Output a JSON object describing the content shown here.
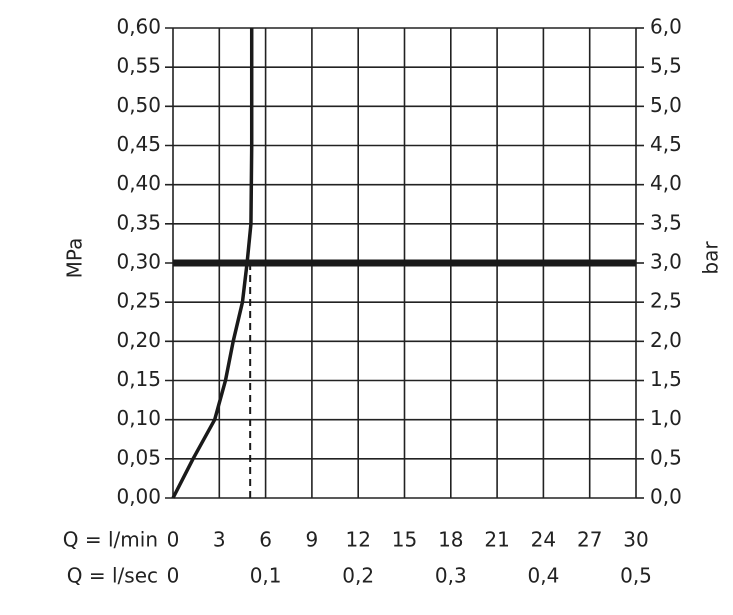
{
  "chart_data": {
    "type": "line",
    "ylabel": "MPa",
    "y2label": "bar",
    "xlabel": "Q = l/min",
    "x2label": "Q = l/sec",
    "xlim": [
      0,
      30
    ],
    "xticks": [
      0,
      3,
      6,
      9,
      12,
      15,
      18,
      21,
      24,
      27,
      30
    ],
    "x2lim": [
      0,
      0.5
    ],
    "x2ticks": [
      0,
      {
        "value": 0.1,
        "label": "0,1"
      },
      {
        "value": 0.2,
        "label": "0,2"
      },
      {
        "value": 0.3,
        "label": "0,3"
      },
      {
        "value": 0.4,
        "label": "0,4"
      },
      {
        "value": 0.5,
        "label": "0,5"
      }
    ],
    "ylim": [
      0,
      0.6
    ],
    "yticks": [
      {
        "value": 0,
        "label": "0,00"
      },
      {
        "value": 0.05,
        "label": "0,05"
      },
      {
        "value": 0.1,
        "label": "0,10"
      },
      {
        "value": 0.15,
        "label": "0,15"
      },
      {
        "value": 0.2,
        "label": "0,20"
      },
      {
        "value": 0.25,
        "label": "0,25"
      },
      {
        "value": 0.3,
        "label": "0,30"
      },
      {
        "value": 0.35,
        "label": "0,35"
      },
      {
        "value": 0.4,
        "label": "0,40"
      },
      {
        "value": 0.45,
        "label": "0,45"
      },
      {
        "value": 0.5,
        "label": "0,50"
      },
      {
        "value": 0.55,
        "label": "0,55"
      },
      {
        "value": 0.6,
        "label": "0,60"
      }
    ],
    "y2lim": [
      0,
      6
    ],
    "y2ticks": [
      {
        "value": 0,
        "label": "0,0"
      },
      {
        "value": 0.5,
        "label": "0,5"
      },
      {
        "value": 1,
        "label": "1,0"
      },
      {
        "value": 1.5,
        "label": "1,5"
      },
      {
        "value": 2,
        "label": "2,0"
      },
      {
        "value": 2.5,
        "label": "2,5"
      },
      {
        "value": 3,
        "label": "3,0"
      },
      {
        "value": 3.5,
        "label": "3,5"
      },
      {
        "value": 4,
        "label": "4,0"
      },
      {
        "value": 4.5,
        "label": "4,5"
      },
      {
        "value": 5,
        "label": "5,0"
      },
      {
        "value": 5.5,
        "label": "5,5"
      },
      {
        "value": 6,
        "label": "6,0"
      }
    ],
    "grid": true,
    "series": [
      {
        "color": "#1a1a1a",
        "x": [
          0,
          1.3,
          2.7,
          3.4,
          3.9,
          4.5,
          4.8,
          5.05,
          5.1,
          5.1,
          5.1
        ],
        "values": [
          0,
          0.05,
          0.1,
          0.15,
          0.2,
          0.25,
          0.3,
          0.35,
          0.45,
          0.55,
          0.6
        ]
      }
    ],
    "reference_y": 0.3,
    "reference_x": 5
  }
}
